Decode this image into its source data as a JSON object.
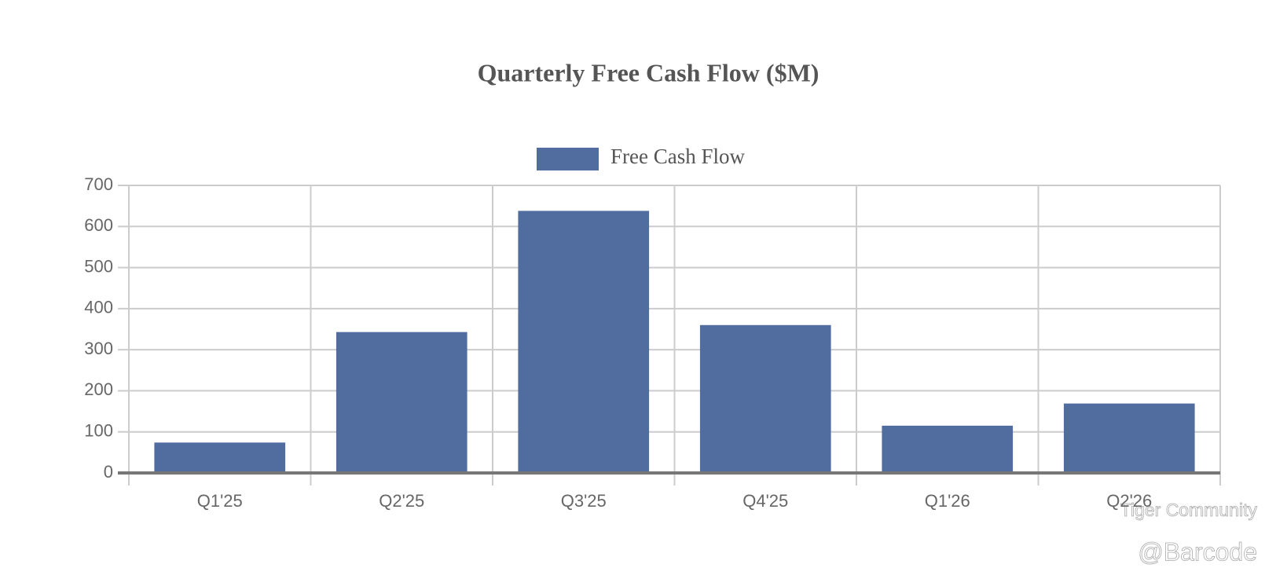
{
  "chart_data": {
    "type": "bar",
    "title": "Quarterly Free Cash Flow ($M)",
    "categories": [
      "Q1'25",
      "Q2'25",
      "Q3'25",
      "Q4'25",
      "Q1'26",
      "Q2'26"
    ],
    "series": [
      {
        "name": "Free Cash Flow",
        "color": "#516c9e",
        "values": [
          74,
          343,
          638,
          360,
          115,
          169
        ]
      }
    ],
    "ylim": [
      0,
      700
    ],
    "yticks": [
      0,
      100,
      200,
      300,
      400,
      500,
      600,
      700
    ],
    "grid": true,
    "legend": "top",
    "watermarks": [
      "Tiger Community",
      "@Barcode"
    ]
  }
}
